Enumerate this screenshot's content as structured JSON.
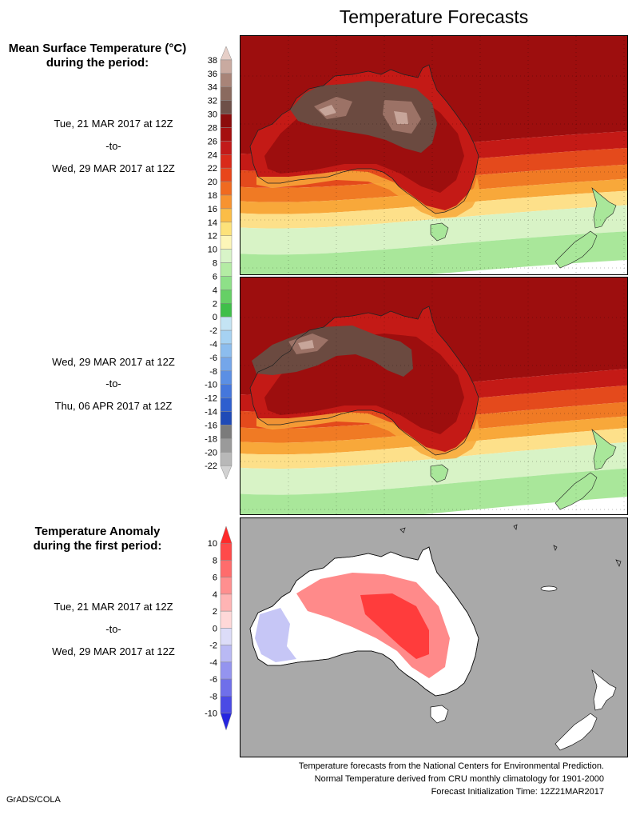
{
  "title": "Temperature Forecasts",
  "mean_section": {
    "title_line1": "Mean Surface Temperature (°C)",
    "title_line2": "during the period:",
    "period1": {
      "from": "Tue, 21 MAR 2017 at 12Z",
      "sep": "-to-",
      "to": "Wed, 29 MAR 2017 at 12Z"
    },
    "period2": {
      "from": "Wed, 29 MAR 2017 at 12Z",
      "sep": "-to-",
      "to": "Thu, 06 APR 2017 at 12Z"
    }
  },
  "anomaly_section": {
    "title_line1": "Temperature Anomaly",
    "title_line2": "during the first period:",
    "period": {
      "from": "Tue, 21 MAR 2017 at 12Z",
      "sep": "-to-",
      "to": "Wed, 29 MAR 2017 at 12Z"
    }
  },
  "temp_colorbar": {
    "labels": [
      "38",
      "36",
      "34",
      "32",
      "30",
      "28",
      "26",
      "24",
      "22",
      "20",
      "18",
      "16",
      "14",
      "12",
      "10",
      "8",
      "6",
      "4",
      "2",
      "0",
      "-2",
      "-4",
      "-6",
      "-8",
      "-10",
      "-12",
      "-14",
      "-16",
      "-18",
      "-20",
      "-22"
    ],
    "colors": [
      "#e6cfc8",
      "#c9aaa0",
      "#a88478",
      "#8a6a5e",
      "#6e5048",
      "#8c0c0c",
      "#a50f0f",
      "#c21a1a",
      "#d92a1a",
      "#e8451a",
      "#f06a20",
      "#f79330",
      "#fbbd47",
      "#fde27a",
      "#fdf6b8",
      "#d8f4c8",
      "#b4eca4",
      "#8ee088",
      "#66d066",
      "#3fbf4a",
      "#c4e4f4",
      "#a6d2f2",
      "#8cbdee",
      "#74a6ea",
      "#5b8fe4",
      "#4577dc",
      "#2e5fcf",
      "#1f4ab7",
      "#7b7b7b",
      "#9a9a9a",
      "#b8b8b8",
      "#d2d2d2"
    ]
  },
  "anom_colorbar": {
    "labels": [
      "10",
      "8",
      "6",
      "4",
      "2",
      "0",
      "-2",
      "-4",
      "-6",
      "-8",
      "-10"
    ],
    "colors": [
      "#ff2a2a",
      "#ff4a4a",
      "#ff6c6c",
      "#ff8f8f",
      "#ffb4b4",
      "#ffd8d8",
      "#dcdcf8",
      "#b9b9f4",
      "#9494ef",
      "#6f6fea",
      "#4a4ae5",
      "#2626e0"
    ]
  },
  "footer": {
    "line1": "Temperature forecasts from the National Centers for Environmental Prediction.",
    "line2": "Normal Temperature derived from CRU monthly climatology for 1901-2000",
    "line3": "Forecast Initialization Time: 12Z21MAR2017"
  },
  "credit": "GrADS/COLA",
  "map_colors": {
    "hot_brown": "#6b4a40",
    "warm_brown": "#9c7266",
    "light_brown": "#c7a59a",
    "dark_red": "#9d0e0e",
    "red": "#c41a16",
    "orange_red": "#e44a1c",
    "orange": "#f07a24",
    "light_orange": "#f8a83a",
    "yellow": "#fde08a",
    "pale_green": "#d8f3c6",
    "green": "#a9e79a",
    "anomaly_bg": "#a9a9a9",
    "anomaly_land": "#ffffff",
    "anomaly_warm": "#ff8a8a",
    "anomaly_hot": "#ff3c3c",
    "anomaly_cool": "#c6c6f6"
  }
}
